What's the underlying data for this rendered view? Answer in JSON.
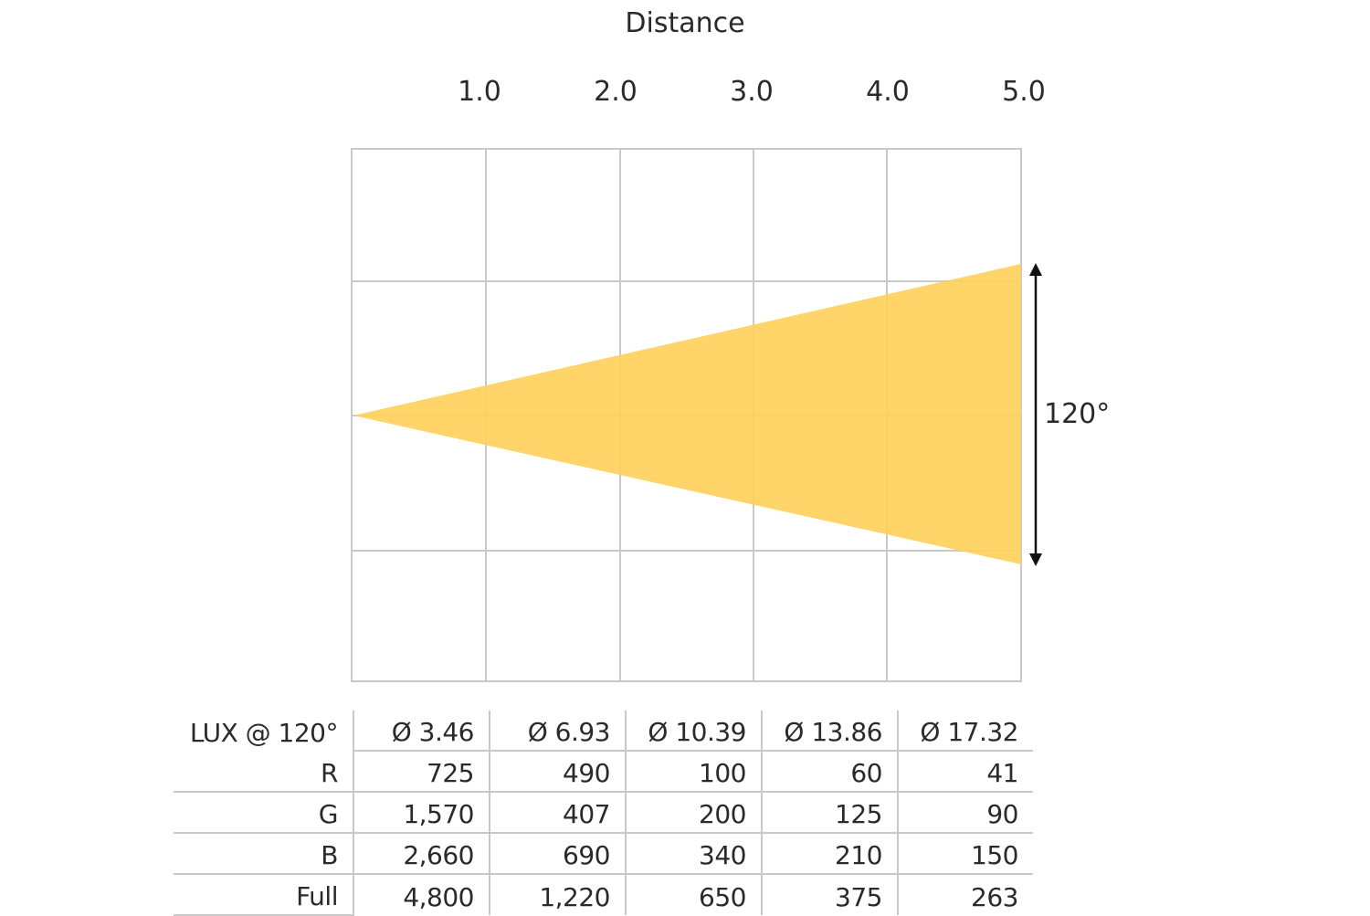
{
  "diagram": {
    "axis_title": "Distance",
    "distance_ticks": [
      "1.0",
      "2.0",
      "3.0",
      "4.0",
      "5.0"
    ],
    "beam_angle_label": "120°",
    "colors": {
      "beam_fill": "#FFD15C",
      "grid_line": "#c9c9c9",
      "arrow": "#111111",
      "text": "#2a2a2a"
    }
  },
  "table": {
    "header": {
      "label": "LUX @ 120°",
      "diameters": [
        "Ø 3.46",
        "Ø 6.93",
        "Ø 10.39",
        "Ø 13.86",
        "Ø 17.32"
      ]
    },
    "rows": [
      {
        "label": "R",
        "values": [
          "725",
          "490",
          "100",
          "60",
          "41"
        ]
      },
      {
        "label": "G",
        "values": [
          "1,570",
          "407",
          "200",
          "125",
          "90"
        ]
      },
      {
        "label": "B",
        "values": [
          "2,660",
          "690",
          "340",
          "210",
          "150"
        ]
      },
      {
        "label": "Full",
        "values": [
          "4,800",
          "1,220",
          "650",
          "375",
          "263"
        ]
      }
    ]
  }
}
